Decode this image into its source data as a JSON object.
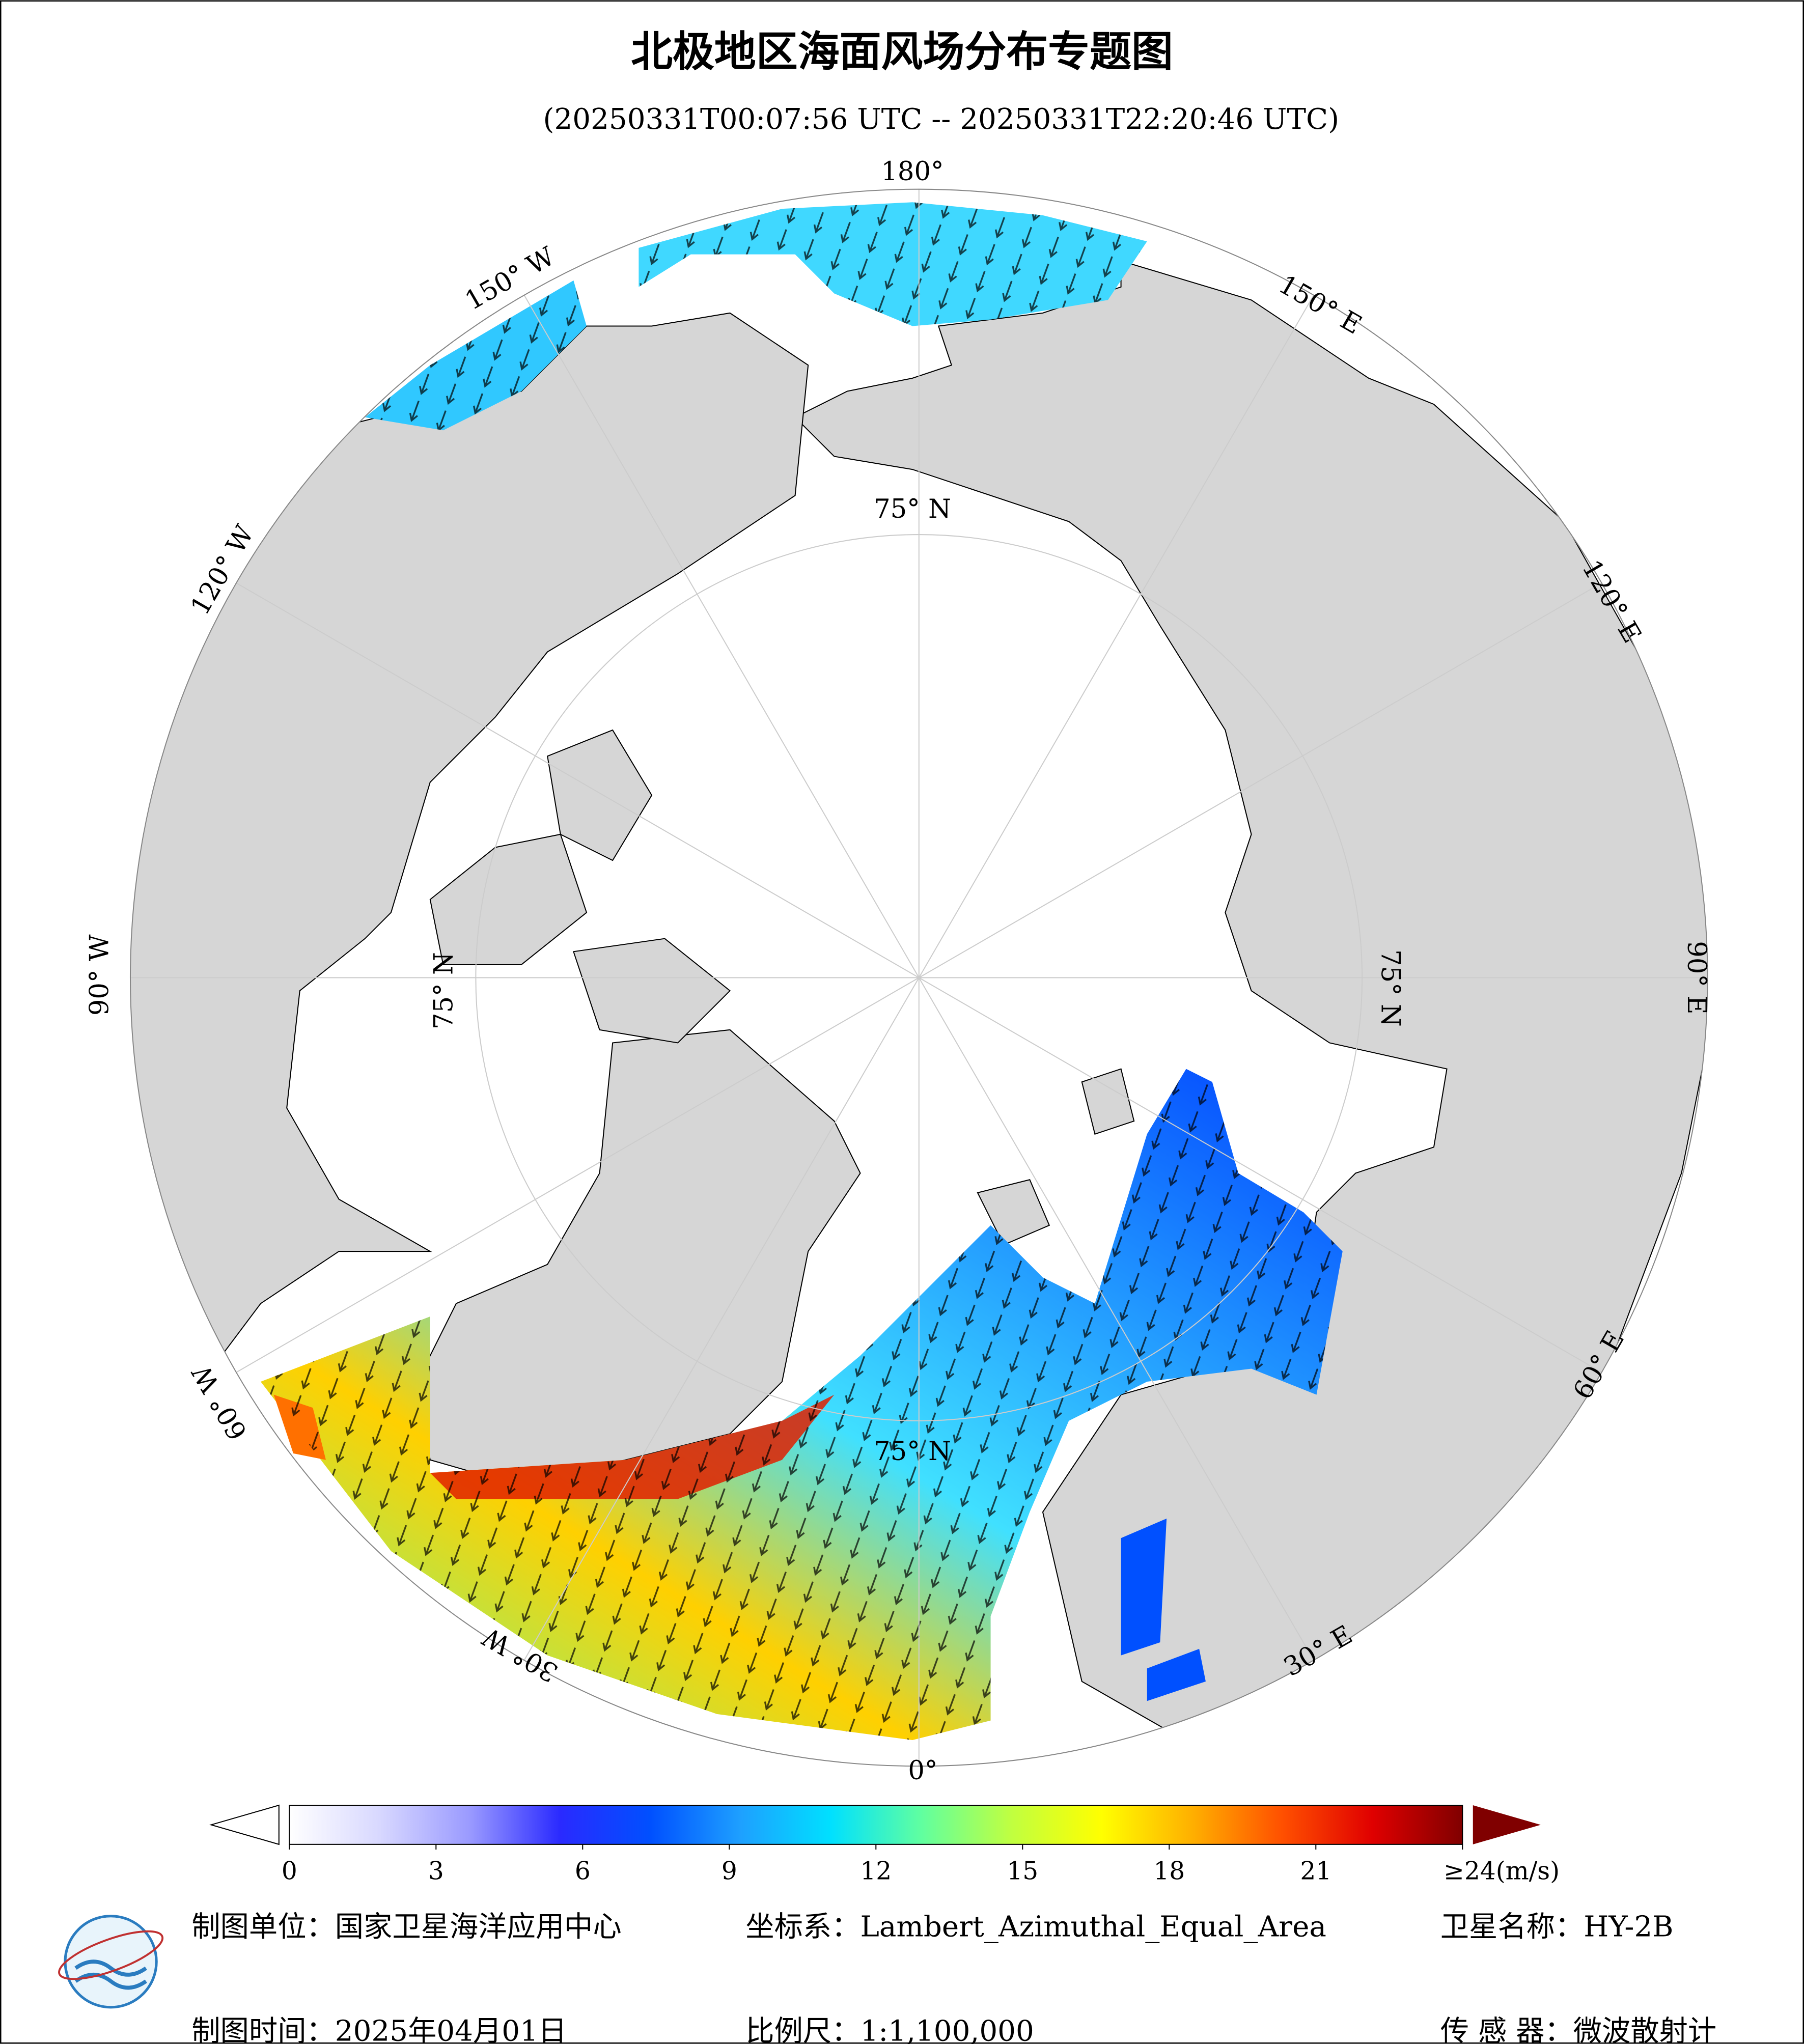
{
  "header": {
    "title": "北极地区海面风场分布专题图",
    "subtitle": "(20250331T00:07:56 UTC -- 20250331T22:20:46 UTC)"
  },
  "map": {
    "longitude_labels": [
      "180°",
      "150° E",
      "120° E",
      "90° E",
      "60° E",
      "30° E",
      "0°",
      "30° W",
      "60° W",
      "90° W",
      "120° W",
      "150° W"
    ],
    "latitude_labels": [
      "75° N",
      "75° N",
      "75° N",
      "75° N"
    ]
  },
  "colorbar": {
    "lim": [
      0,
      24
    ],
    "ticks": [
      0,
      3,
      6,
      9,
      12,
      15,
      18,
      21,
      {
        "value": 24,
        "label": "≥24(m/s)"
      }
    ],
    "colors": [
      "#ffffff",
      "#d8d8ff",
      "#9a9aff",
      "#2a2aff",
      "#0050ff",
      "#1ea0ff",
      "#00e0ff",
      "#60ffa0",
      "#c0ff40",
      "#ffff00",
      "#ffb000",
      "#ff5000",
      "#e00000",
      "#800000"
    ]
  },
  "footer": {
    "unit": "制图单位：国家卫星海洋应用中心",
    "projection": "坐标系：Lambert_Azimuthal_Equal_Area",
    "satellite": "卫星名称：HY-2B",
    "date": "制图时间：2025年04月01日",
    "scale": "比例尺：1:1,100,000",
    "sensor": "传 感 器：微波散射计"
  }
}
